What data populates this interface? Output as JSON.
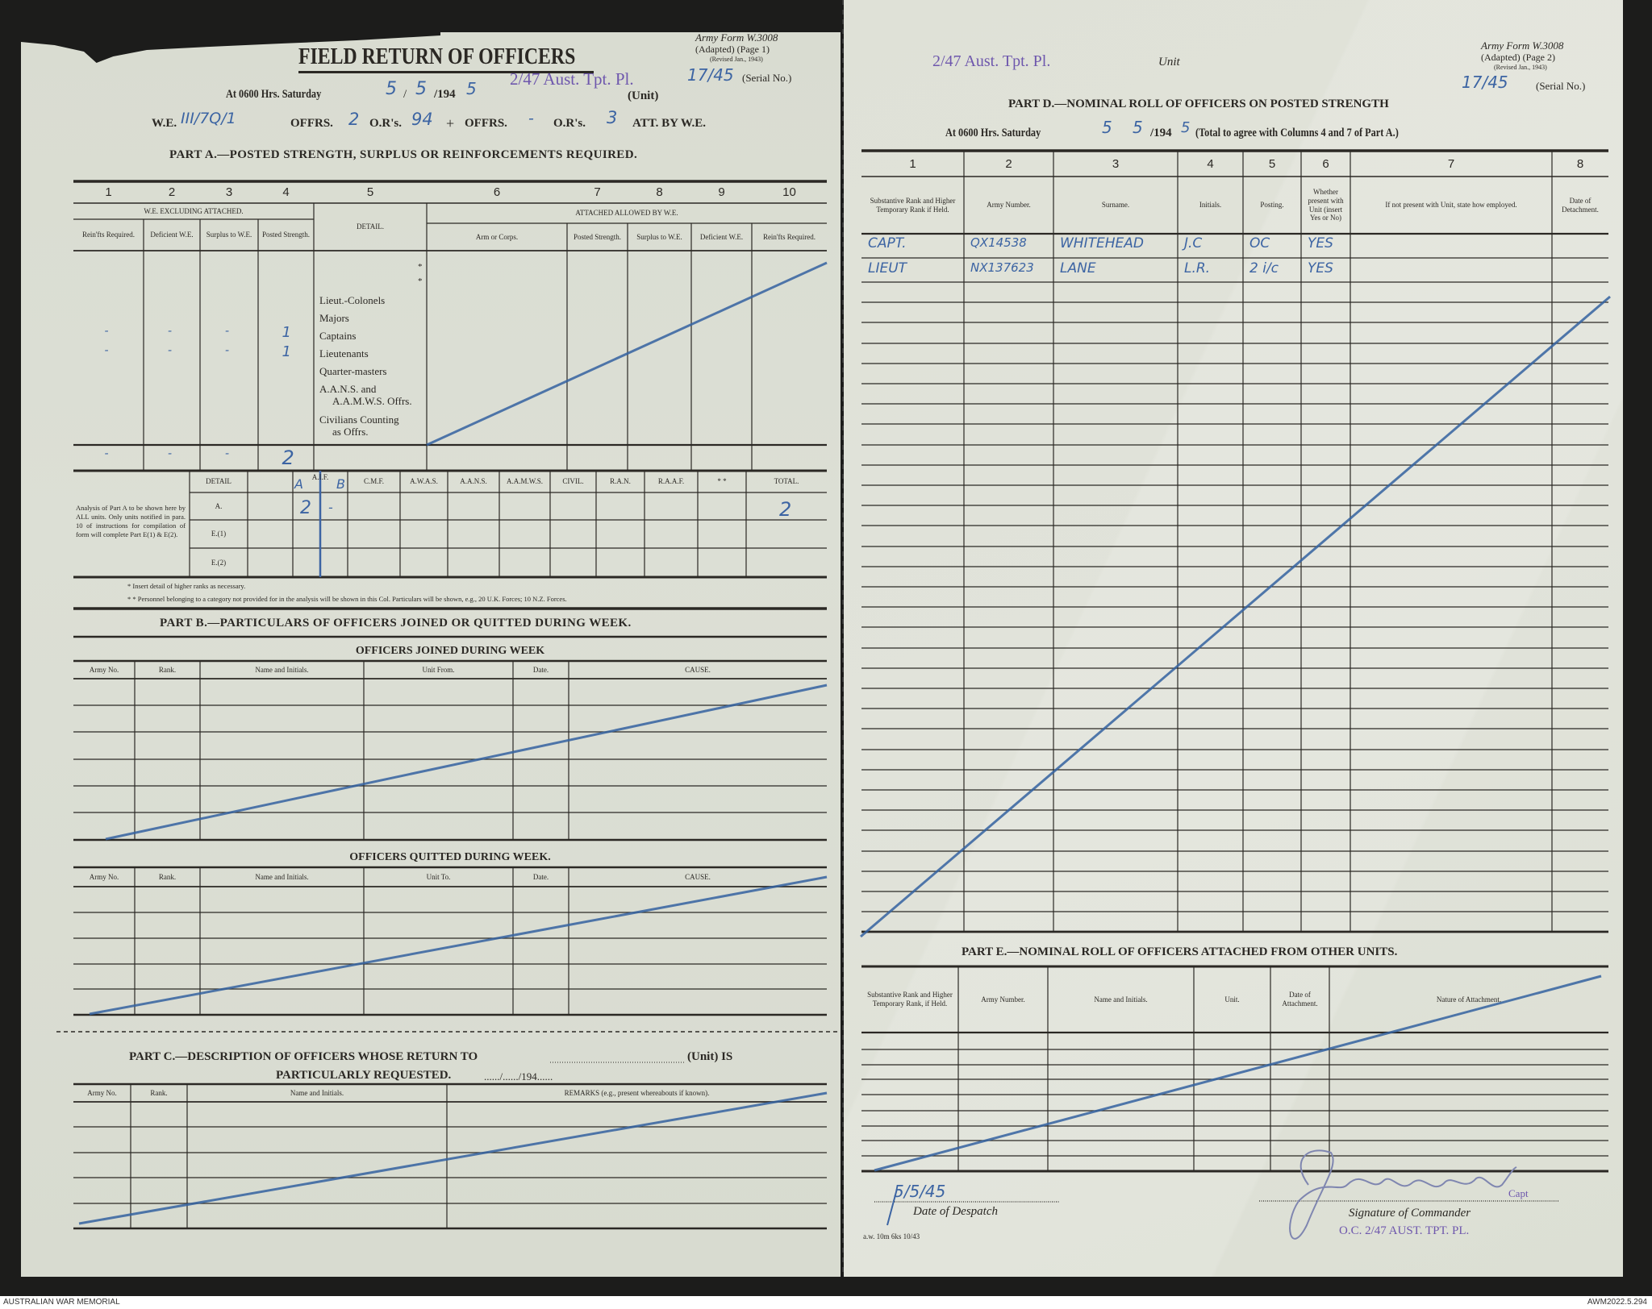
{
  "left_page": {
    "title": "FIELD RETURN OF OFFICERS",
    "form_id": {
      "line1": "Army Form W.3008",
      "line2": "(Adapted) (Page 1)",
      "line3": "(Revised Jan., 1943)"
    },
    "serial": {
      "value": "17/45",
      "label": "(Serial No.)"
    },
    "unit": {
      "stamp": "2/47 Aust. Tpt. Pl.",
      "label": "(Unit)"
    },
    "date_line": {
      "prefix": "At 0600 Hrs. Saturday",
      "day": "5",
      "sep1": "/",
      "month": "5",
      "year_prefix": "/194",
      "year_suffix": "5"
    },
    "we_line": {
      "we_label": "W.E.",
      "we_value": "III/7Q/1",
      "offrs_label": "OFFRS.",
      "offrs_value": "2",
      "ors_label": "O.R's.",
      "ors_value": "94",
      "plus": "+",
      "att_offrs_label": "OFFRS.",
      "att_offrs_value": "-",
      "att_ors_label": "O.R's.",
      "att_ors_value": "3",
      "att_suffix": "ATT. BY W.E."
    },
    "part_a": {
      "heading": "PART A.—POSTED STRENGTH, SURPLUS OR REINFORCEMENTS REQUIRED.",
      "col_numbers": [
        "1",
        "2",
        "3",
        "4",
        "5",
        "6",
        "7",
        "8",
        "9",
        "10"
      ],
      "group_left": "W.E. EXCLUDING ATTACHED.",
      "group_right": "ATTACHED ALLOWED BY W.E.",
      "detail_header": "DETAIL.",
      "subheaders": [
        "Rein'fts Required.",
        "Deficient W.E.",
        "Surplus to W.E.",
        "Posted Strength.",
        "Arm or Corps.",
        "Posted Strength.",
        "Surplus to W.E.",
        "Deficient W.E.",
        "Rein'fts Required."
      ],
      "detail_items": [
        "*",
        "*",
        "Lieut.-Colonels",
        "Majors",
        "Captains",
        "Lieutenants",
        "Quarter-masters",
        "A.A.N.S. and",
        "A.A.M.W.S. Offrs.",
        "Civilians Counting",
        "as Offrs."
      ],
      "captains_row": [
        "-",
        "-",
        "-",
        "1"
      ],
      "lieutenants_row": [
        "-",
        "-",
        "-",
        "1"
      ],
      "totals_row": [
        "-",
        "-",
        "-",
        "2"
      ],
      "analysis": {
        "note": "Analysis of Part A to be shown here by ALL units. Only units notified in para. 10 of instructions for compilation of form will complete Part E(1) & E(2).",
        "headers": [
          "DETAIL",
          "",
          "A.I.F.",
          "C.M.F.",
          "A.W.A.S.",
          "A.A.N.S.",
          "A.A.M.W.S.",
          "CIVIL.",
          "R.A.N.",
          "R.A.A.F.",
          "* *",
          "TOTAL."
        ],
        "rows": [
          "A.",
          "E.(1)",
          "E.(2)"
        ],
        "aif_split": [
          "A",
          "B"
        ],
        "row_a_values": {
          "aif_a": "2",
          "aif_b": "-",
          "total": "2"
        }
      },
      "footnotes": [
        "* Insert detail of higher ranks as necessary.",
        "* * Personnel belonging to a category not provided for in the analysis will be shown in this Col. Particulars will be shown, e.g., 20 U.K. Forces; 10 N.Z. Forces."
      ]
    },
    "part_b": {
      "heading": "PART B.—PARTICULARS OF OFFICERS JOINED OR QUITTED DURING WEEK.",
      "joined_title": "OFFICERS JOINED DURING WEEK",
      "joined_headers": [
        "Army No.",
        "Rank.",
        "Name and Initials.",
        "Unit From.",
        "Date.",
        "CAUSE."
      ],
      "quitted_title": "OFFICERS QUITTED DURING WEEK.",
      "quitted_headers": [
        "Army No.",
        "Rank.",
        "Name and Initials.",
        "Unit To.",
        "Date.",
        "CAUSE."
      ]
    },
    "part_c": {
      "heading": "PART C.—DESCRIPTION OF OFFICERS WHOSE RETURN TO",
      "unit_suffix": "(Unit) IS",
      "heading_line2": "PARTICULARLY REQUESTED.",
      "date_blank": "....../....../194......",
      "headers": [
        "Army No.",
        "Rank.",
        "Name and Initials.",
        "REMARKS (e.g., present whereabouts if known)."
      ]
    }
  },
  "right_page": {
    "unit": {
      "stamp": "2/47 Aust. Tpt. Pl.",
      "label": "Unit"
    },
    "form_id": {
      "line1": "Army Form W.3008",
      "line2": "(Adapted) (Page 2)",
      "line3": "(Revised Jan., 1943)"
    },
    "serial": {
      "value": "17/45",
      "label": "(Serial No.)"
    },
    "part_d": {
      "heading": "PART D.—NOMINAL ROLL OF OFFICERS ON POSTED STRENGTH",
      "date_prefix": "At 0600 Hrs. Saturday",
      "day": "5",
      "month": "5",
      "year_prefix": "/194",
      "year_suffix": "5",
      "date_suffix": "(Total to agree with Columns 4 and 7 of Part A.)",
      "col_numbers": [
        "1",
        "2",
        "3",
        "4",
        "5",
        "6",
        "7",
        "8"
      ],
      "headers": [
        "Substantive Rank and Higher Temporary Rank if Held.",
        "Army Number.",
        "Surname.",
        "Initials.",
        "Posting.",
        "Whether present with Unit (insert Yes or No)",
        "If not present with Unit, state how employed.",
        "Date of Detachment."
      ],
      "rows": [
        [
          "CAPT.",
          "QX14538",
          "WHITEHEAD",
          "J.C",
          "OC",
          "YES"
        ],
        [
          "LIEUT",
          "NX137623",
          "LANE",
          "L.R.",
          "2 i/c",
          "YES"
        ]
      ]
    },
    "part_e": {
      "heading": "PART E.—NOMINAL ROLL OF OFFICERS ATTACHED FROM OTHER UNITS.",
      "headers": [
        "Substantive Rank and Higher Temporary Rank, if Held.",
        "Army Number.",
        "Name and Initials.",
        "Unit.",
        "Date of Attachment.",
        "Nature of Attachment."
      ]
    },
    "footer": {
      "despatch_date": "5/5/45",
      "despatch_label": "Date of Despatch",
      "signature": "J.C. Whitehead",
      "signature_rank": "Capt",
      "signature_label": "Signature of Commander",
      "stamp": "O.C. 2/47 AUST. TPT. PL.",
      "printer_mark": "a.w. 10m 6ks 10/43"
    }
  },
  "archive": {
    "left": "AUSTRALIAN WAR MEMORIAL",
    "right": "AWM2022.5.294"
  },
  "colors": {
    "ink": "#2b2824",
    "pen": "#3c64a3",
    "stamp": "#6e57ad",
    "paper": "#dcdfd4"
  }
}
